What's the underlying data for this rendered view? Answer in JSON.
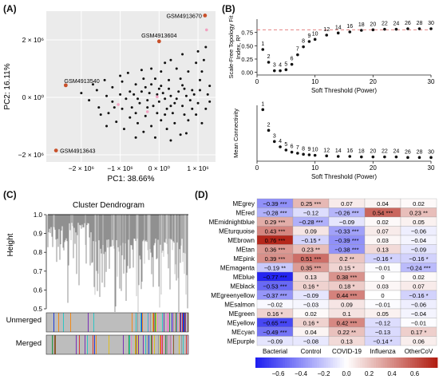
{
  "panels": {
    "A": {
      "label": "(A)",
      "chart_data": {
        "type": "scatter",
        "xlabel": "PC1: 38.66%",
        "ylabel": "PC2: 16.11%",
        "xlim": [
          -2.9,
          1.45
        ],
        "ylim": [
          -2.25,
          3.0
        ],
        "xticks": [
          {
            "v": -2,
            "t": "−2 × 10⁶"
          },
          {
            "v": -1,
            "t": "−1 × 10⁶"
          },
          {
            "v": 0,
            "t": "0 × 10⁰"
          },
          {
            "v": 1,
            "t": "1 × 10⁶"
          }
        ],
        "yticks": [
          {
            "v": 2,
            "t": "2 × 10⁶"
          },
          {
            "v": 0,
            "t": "0 × 10⁰"
          },
          {
            "v": -2,
            "t": "−2 × 10⁶"
          }
        ],
        "highlighted": [
          {
            "label": "GSM4913670",
            "x": 1.18,
            "y": 2.85
          },
          {
            "label": "GSM4913604",
            "x": 0.0,
            "y": 1.95
          },
          {
            "label": "GSM4913540",
            "x": -2.4,
            "y": 0.42
          },
          {
            "label": "GSM4913643",
            "x": -2.65,
            "y": -1.85
          }
        ],
        "pink_points": [
          [
            1.22,
            2.35
          ],
          [
            -1.05,
            -0.25
          ],
          [
            -0.05,
            0.02
          ],
          [
            -0.3,
            -0.5
          ]
        ],
        "points": [
          [
            -0.95,
            0.55
          ],
          [
            -1.2,
            0.35
          ],
          [
            -0.6,
            0.45
          ],
          [
            -0.35,
            0.35
          ],
          [
            0.05,
            0.4
          ],
          [
            0.25,
            0.3
          ],
          [
            0.6,
            0.42
          ],
          [
            0.85,
            0.25
          ],
          [
            1.05,
            0.6
          ],
          [
            1.1,
            0.9
          ],
          [
            1.15,
            1.3
          ],
          [
            1.2,
            1.75
          ],
          [
            0.95,
            1.2
          ],
          [
            0.75,
            0.9
          ],
          [
            0.45,
            1.0
          ],
          [
            0.3,
            1.3
          ],
          [
            0.15,
            1.2
          ],
          [
            -0.2,
            1.0
          ],
          [
            -0.45,
            0.95
          ],
          [
            -0.8,
            0.85
          ],
          [
            -1.4,
            0.6
          ],
          [
            -1.6,
            0.25
          ],
          [
            -1.8,
            -0.1
          ],
          [
            -1.55,
            -0.35
          ],
          [
            -1.3,
            -0.55
          ],
          [
            -1.1,
            -0.85
          ],
          [
            -0.9,
            -1.1
          ],
          [
            -0.75,
            -0.7
          ],
          [
            -0.55,
            -0.9
          ],
          [
            -0.4,
            -1.2
          ],
          [
            -0.2,
            -1.0
          ],
          [
            0.05,
            -0.8
          ],
          [
            0.2,
            -1.1
          ],
          [
            0.4,
            -0.9
          ],
          [
            0.55,
            -1.3
          ],
          [
            0.75,
            -0.8
          ],
          [
            0.95,
            -0.6
          ],
          [
            1.1,
            -0.9
          ],
          [
            1.2,
            -0.4
          ],
          [
            1.0,
            -0.2
          ],
          [
            0.8,
            -0.1
          ],
          [
            0.6,
            -0.3
          ],
          [
            0.4,
            -0.2
          ],
          [
            0.2,
            -0.4
          ],
          [
            0.0,
            -0.15
          ],
          [
            -0.15,
            -0.3
          ],
          [
            -0.3,
            -0.1
          ],
          [
            -0.5,
            -0.2
          ],
          [
            -0.7,
            -0.35
          ],
          [
            -0.85,
            -0.05
          ],
          [
            -1.0,
            0.1
          ],
          [
            -1.2,
            -0.15
          ],
          [
            -1.35,
            0.05
          ],
          [
            -0.65,
            0.1
          ],
          [
            -0.45,
            0.2
          ],
          [
            -0.25,
            0.15
          ],
          [
            0.1,
            0.15
          ],
          [
            0.3,
            0.05
          ],
          [
            0.5,
            0.2
          ],
          [
            0.7,
            0.05
          ],
          [
            0.9,
            0.1
          ],
          [
            1.05,
            0.25
          ],
          [
            1.25,
            0.1
          ],
          [
            1.3,
            -0.15
          ],
          [
            0.15,
            -0.6
          ],
          [
            -0.05,
            -0.55
          ],
          [
            -0.35,
            -0.65
          ],
          [
            -0.6,
            -0.55
          ],
          [
            0.35,
            -0.55
          ],
          [
            0.65,
            -0.6
          ],
          [
            0.85,
            -0.4
          ],
          [
            -1.5,
            -0.6
          ],
          [
            -1.7,
            0.45
          ],
          [
            -2.0,
            0.15
          ],
          [
            -0.1,
            0.65
          ],
          [
            0.25,
            0.6
          ],
          [
            0.55,
            0.65
          ],
          [
            -0.4,
            0.65
          ],
          [
            -0.75,
            0.2
          ],
          [
            -0.95,
            -0.4
          ],
          [
            -1.15,
            -0.35
          ],
          [
            0.0,
            0.3
          ],
          [
            -0.2,
            0.45
          ],
          [
            0.15,
            -0.05
          ],
          [
            0.45,
            -0.05
          ],
          [
            0.65,
            0.3
          ],
          [
            -0.55,
            -0.05
          ],
          [
            -0.05,
            0.1
          ],
          [
            0.3,
            -0.3
          ],
          [
            -0.3,
            -0.35
          ],
          [
            1.3,
            0.4
          ],
          [
            1.0,
            1.6
          ],
          [
            0.6,
            1.5
          ],
          [
            -0.1,
            -1.4
          ],
          [
            0.3,
            -1.5
          ],
          [
            0.7,
            -1.25
          ],
          [
            -0.6,
            -1.4
          ],
          [
            -1.35,
            -1.0
          ],
          [
            -1.0,
            0.75
          ],
          [
            0.05,
            0.9
          ]
        ]
      }
    },
    "B_top": {
      "label": "(B)",
      "chart_data": {
        "type": "scatter",
        "xlabel": "Soft Threshold (Power)",
        "ylabel": "Scale-Free Topology Fit Index, R²",
        "xlim": [
          0,
          30
        ],
        "ylim": [
          -0.05,
          1.0
        ],
        "xticks": [
          0,
          10,
          20,
          30
        ],
        "yticks": [
          0.0,
          0.25,
          0.5,
          0.75
        ],
        "threshold_line": 0.8,
        "x": [
          1,
          2,
          3,
          4,
          5,
          6,
          7,
          8,
          9,
          10,
          12,
          14,
          16,
          18,
          20,
          22,
          24,
          26,
          28,
          30
        ],
        "y": [
          0.43,
          0.19,
          0.03,
          0.03,
          0.05,
          0.15,
          0.33,
          0.48,
          0.58,
          0.62,
          0.7,
          0.74,
          0.76,
          0.79,
          0.8,
          0.81,
          0.81,
          0.82,
          0.82,
          0.82
        ],
        "point_labels": [
          "1",
          "2",
          "3",
          "4",
          "5",
          "6",
          "7",
          "8",
          "9",
          "10",
          "12",
          "14",
          "16",
          "18",
          "20",
          "22",
          "24",
          "26",
          "28",
          "30"
        ]
      }
    },
    "B_bottom": {
      "chart_data": {
        "type": "scatter",
        "xlabel": "Soft Threshold (Power)",
        "ylabel": "Mean Connectivity",
        "xlim": [
          0,
          30
        ],
        "ylim": [
          -0.05,
          1.0
        ],
        "xticks": [
          0,
          10,
          20,
          30
        ],
        "x": [
          1,
          2,
          3,
          4,
          5,
          6,
          7,
          8,
          9,
          10,
          12,
          14,
          16,
          18,
          20,
          22,
          24,
          26,
          28,
          30
        ],
        "y": [
          0.92,
          0.53,
          0.32,
          0.22,
          0.16,
          0.12,
          0.1,
          0.08,
          0.07,
          0.06,
          0.05,
          0.04,
          0.04,
          0.03,
          0.03,
          0.03,
          0.03,
          0.02,
          0.02,
          0.02
        ],
        "point_labels": [
          "1",
          "2",
          "3",
          "4",
          "5",
          "6",
          "7",
          "8",
          "9",
          "10",
          "12",
          "14",
          "16",
          "18",
          "20",
          "22",
          "24",
          "26",
          "28",
          "30"
        ]
      }
    },
    "C": {
      "label": "(C)",
      "title": "Cluster Dendrogram",
      "ylabel": "Height",
      "yticks": [
        "1.0",
        "0.9",
        "0.8",
        "0.7",
        "0.6",
        "0.5"
      ],
      "track_labels": [
        "Unmerged",
        "Merged"
      ],
      "track_colors": [
        "#1f3bd6",
        "#7a2fb5",
        "#2aa34a",
        "#e0c020",
        "#d93a3a",
        "#e58ac8",
        "#8b5a2b",
        "#2fc4c4",
        "#9a9a9a",
        "#f08a1c"
      ]
    },
    "D": {
      "label": "(D)",
      "columns": [
        "Bacterial",
        "Control",
        "COVID-19",
        "Influenza",
        "OtherCoV"
      ],
      "rows": [
        {
          "module": "MEgrey",
          "cells": [
            {
              "v": -0.39,
              "t": "−0.39 ***"
            },
            {
              "v": 0.25,
              "t": "0.25 ***"
            },
            {
              "v": 0.07,
              "t": "0.07"
            },
            {
              "v": 0.04,
              "t": "0.04"
            },
            {
              "v": 0.02,
              "t": "0.02"
            }
          ]
        },
        {
          "module": "MEred",
          "cells": [
            {
              "v": -0.28,
              "t": "−0.28 ***"
            },
            {
              "v": -0.12,
              "t": "−0.12"
            },
            {
              "v": -0.26,
              "t": "−0.26 ***"
            },
            {
              "v": 0.54,
              "t": "0.54 ***"
            },
            {
              "v": 0.23,
              "t": "0.23 **"
            }
          ]
        },
        {
          "module": "MEmidnightblue",
          "cells": [
            {
              "v": 0.29,
              "t": "0.29 ***"
            },
            {
              "v": -0.28,
              "t": "−0.28 ***"
            },
            {
              "v": -0.09,
              "t": "−0.09"
            },
            {
              "v": 0.02,
              "t": "0.02"
            },
            {
              "v": 0.05,
              "t": "0.05"
            }
          ]
        },
        {
          "module": "MEturquoise",
          "cells": [
            {
              "v": 0.43,
              "t": "0.43 ***"
            },
            {
              "v": 0.09,
              "t": "0.09"
            },
            {
              "v": -0.33,
              "t": "−0.33 ***"
            },
            {
              "v": 0.07,
              "t": "0.07"
            },
            {
              "v": -0.06,
              "t": "−0.06"
            }
          ]
        },
        {
          "module": "MEbrown",
          "cells": [
            {
              "v": 0.76,
              "t": "0.76 ***"
            },
            {
              "v": -0.15,
              "t": "−0.15 *"
            },
            {
              "v": -0.39,
              "t": "−0.39 ***"
            },
            {
              "v": 0.03,
              "t": "0.03"
            },
            {
              "v": -0.04,
              "t": "−0.04"
            }
          ]
        },
        {
          "module": "MEtan",
          "cells": [
            {
              "v": 0.36,
              "t": "0.36 ***"
            },
            {
              "v": 0.23,
              "t": "0.23 **"
            },
            {
              "v": -0.38,
              "t": "−0.38 ***"
            },
            {
              "v": 0.13,
              "t": "0.13"
            },
            {
              "v": -0.09,
              "t": "−0.09"
            }
          ]
        },
        {
          "module": "MEpink",
          "cells": [
            {
              "v": 0.39,
              "t": "0.39 ***"
            },
            {
              "v": 0.51,
              "t": "0.51 ***"
            },
            {
              "v": 0.2,
              "t": "0.2 **"
            },
            {
              "v": -0.16,
              "t": "−0.16 *"
            },
            {
              "v": -0.16,
              "t": "−0.16 *"
            }
          ]
        },
        {
          "module": "MEmagenta",
          "cells": [
            {
              "v": -0.19,
              "t": "−0.19 **"
            },
            {
              "v": 0.35,
              "t": "0.35 ***"
            },
            {
              "v": 0.15,
              "t": "0.15 *"
            },
            {
              "v": -0.01,
              "t": "−0.01"
            },
            {
              "v": -0.24,
              "t": "−0.24 ***"
            }
          ]
        },
        {
          "module": "MEblue",
          "cells": [
            {
              "v": -0.77,
              "t": "−0.77 ***"
            },
            {
              "v": 0.13,
              "t": "0.13"
            },
            {
              "v": 0.38,
              "t": "0.38 ***"
            },
            {
              "v": 0,
              "t": "0"
            },
            {
              "v": 0.02,
              "t": "0.02"
            }
          ]
        },
        {
          "module": "MEblack",
          "cells": [
            {
              "v": -0.53,
              "t": "−0.53 ***"
            },
            {
              "v": 0.16,
              "t": "0.16 *"
            },
            {
              "v": 0.18,
              "t": "0.18 *"
            },
            {
              "v": 0.03,
              "t": "0.03"
            },
            {
              "v": 0.07,
              "t": "0.07"
            }
          ]
        },
        {
          "module": "MEgreenyellow",
          "cells": [
            {
              "v": -0.37,
              "t": "−0.37 ***"
            },
            {
              "v": -0.09,
              "t": "−0.09"
            },
            {
              "v": 0.44,
              "t": "0.44 ***"
            },
            {
              "v": 0,
              "t": "0"
            },
            {
              "v": -0.16,
              "t": "−0.16 *"
            }
          ]
        },
        {
          "module": "MEsalmon",
          "cells": [
            {
              "v": -0.02,
              "t": "−0.02"
            },
            {
              "v": -0.03,
              "t": "−0.03"
            },
            {
              "v": 0.09,
              "t": "0.09"
            },
            {
              "v": -0.01,
              "t": "−0.01"
            },
            {
              "v": -0.06,
              "t": "−0.06"
            }
          ]
        },
        {
          "module": "MEgreen",
          "cells": [
            {
              "v": 0.16,
              "t": "0.16 *"
            },
            {
              "v": 0.02,
              "t": "0.02"
            },
            {
              "v": 0.1,
              "t": "0.1"
            },
            {
              "v": 0.05,
              "t": "0.05"
            },
            {
              "v": -0.04,
              "t": "−0.04"
            }
          ]
        },
        {
          "module": "MEyellow",
          "cells": [
            {
              "v": -0.65,
              "t": "−0.65 ***"
            },
            {
              "v": 0.16,
              "t": "0.16 *"
            },
            {
              "v": 0.42,
              "t": "0.42 ***"
            },
            {
              "v": -0.12,
              "t": "−0.12"
            },
            {
              "v": -0.01,
              "t": "−0.01"
            }
          ]
        },
        {
          "module": "MEcyan",
          "cells": [
            {
              "v": -0.49,
              "t": "−0.49 ***"
            },
            {
              "v": 0.04,
              "t": "0.04"
            },
            {
              "v": 0.22,
              "t": "0.22 **"
            },
            {
              "v": -0.13,
              "t": "−0.13"
            },
            {
              "v": 0.17,
              "t": "0.17 *"
            }
          ]
        },
        {
          "module": "MEpurple",
          "cells": [
            {
              "v": -0.09,
              "t": "−0.09"
            },
            {
              "v": -0.08,
              "t": "−0.08"
            },
            {
              "v": 0.13,
              "t": "0.13"
            },
            {
              "v": -0.14,
              "t": "−0.14 *"
            },
            {
              "v": 0.06,
              "t": "0.06"
            }
          ]
        }
      ],
      "colorbar": {
        "range": [
          -0.8,
          0.8
        ],
        "ticks": [
          "−0.6",
          "−0.4",
          "−0.2",
          "0.0",
          "0.2",
          "0.4",
          "0.6"
        ]
      },
      "colors": {
        "neg": "#1c1cf0",
        "mid": "#ffffff",
        "pos": "#b01c10"
      }
    }
  }
}
